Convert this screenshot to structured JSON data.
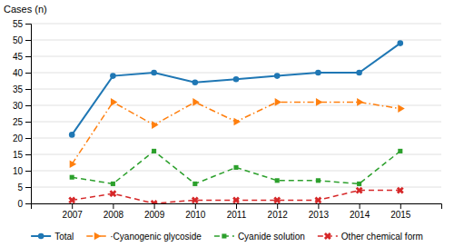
{
  "chart_data": {
    "type": "line",
    "ylabel": "Cases (n)",
    "x": [
      2007,
      2008,
      2009,
      2010,
      2011,
      2012,
      2013,
      2014,
      2015
    ],
    "xlim": [
      2006,
      2016
    ],
    "xticks": [
      2007,
      2008,
      2009,
      2010,
      2011,
      2012,
      2013,
      2014,
      2015
    ],
    "ylim": [
      0,
      55
    ],
    "yticks": [
      0,
      5,
      10,
      15,
      20,
      25,
      30,
      35,
      40,
      45,
      50,
      55
    ],
    "grid": true,
    "legend": "bottom",
    "series": [
      {
        "name": "Total",
        "marker": "circle",
        "line_style": "solid",
        "values": [
          21,
          39,
          40,
          37,
          38,
          39,
          40,
          40,
          49
        ]
      },
      {
        "name": "·Cyanogenic glycoside",
        "marker": "triangle-right",
        "line_style": "dashdot",
        "values": [
          12,
          31,
          24,
          31,
          25,
          31,
          31,
          31,
          29
        ]
      },
      {
        "name": "Cyanide solution",
        "marker": "square",
        "line_style": "dashed",
        "values": [
          8,
          6,
          16,
          6,
          11,
          7,
          7,
          6,
          16
        ]
      },
      {
        "name": "Other chemical form",
        "marker": "x",
        "line_style": "dashed",
        "values": [
          1,
          3,
          0,
          1,
          1,
          1,
          1,
          4,
          4
        ]
      }
    ]
  }
}
